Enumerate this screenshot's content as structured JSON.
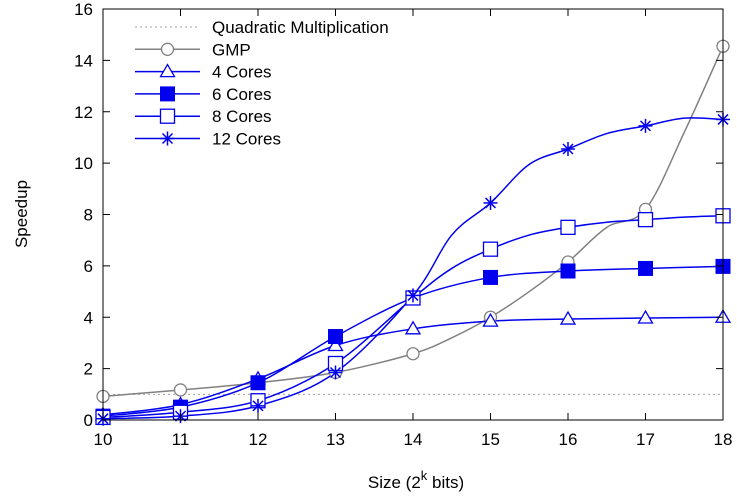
{
  "chart_data": {
    "type": "line",
    "title": "",
    "xlabel": "Size (2^k bits)",
    "xlabel_parts": {
      "before": "Size (2",
      "sup": "k",
      "after": " bits)"
    },
    "ylabel": "Speedup",
    "xlim": [
      10,
      18
    ],
    "ylim": [
      0,
      16
    ],
    "xticks": [
      "10",
      "11",
      "12",
      "13",
      "14",
      "15",
      "16",
      "17",
      "18"
    ],
    "yticks": [
      "0",
      "2",
      "4",
      "6",
      "8",
      "10",
      "12",
      "14",
      "16"
    ],
    "legend_position": "top-left",
    "grid": false,
    "series": [
      {
        "name": "Quadratic Multiplication",
        "color": "#a0a0a0",
        "style": "dotted",
        "marker": "none",
        "x": [
          10,
          18
        ],
        "y": [
          1,
          1
        ],
        "marker_x": []
      },
      {
        "name": "GMP",
        "color": "#808080",
        "style": "solid",
        "marker": "circle",
        "x": [
          10,
          11,
          12,
          13,
          14,
          14.5,
          15,
          15.5,
          16,
          16.5,
          17,
          17.5,
          18
        ],
        "y": [
          0.92,
          1.17,
          1.45,
          1.85,
          2.58,
          3.2,
          4.0,
          5.0,
          6.15,
          7.5,
          8.2,
          11.2,
          14.55
        ],
        "marker_x": [
          10,
          11,
          12,
          13,
          14,
          15,
          16,
          17,
          18
        ]
      },
      {
        "name": "4 Cores",
        "color": "#0000ee",
        "style": "solid",
        "marker": "triangle",
        "x": [
          10,
          11,
          12,
          13,
          14,
          15,
          16,
          17,
          18
        ],
        "y": [
          0.2,
          0.6,
          1.6,
          2.9,
          3.55,
          3.85,
          3.93,
          3.97,
          4.0
        ],
        "marker_x": [
          10,
          11,
          12,
          13,
          14,
          15,
          16,
          17,
          18
        ]
      },
      {
        "name": "6 Cores",
        "color": "#0000ee",
        "style": "solid",
        "marker": "filled-square",
        "x": [
          10,
          11,
          12,
          13,
          14,
          15,
          16,
          17,
          18
        ],
        "y": [
          0.15,
          0.5,
          1.45,
          3.25,
          4.75,
          5.55,
          5.8,
          5.9,
          5.98
        ],
        "marker_x": [
          10,
          11,
          12,
          13,
          14,
          15,
          16,
          17,
          18
        ]
      },
      {
        "name": "8 Cores",
        "color": "#0000ee",
        "style": "solid",
        "marker": "open-square",
        "x": [
          10,
          11,
          12,
          13,
          14,
          14.5,
          15,
          15.5,
          16,
          16.5,
          17,
          17.5,
          18
        ],
        "y": [
          0.1,
          0.3,
          0.75,
          2.2,
          4.75,
          5.9,
          6.65,
          7.2,
          7.5,
          7.7,
          7.8,
          7.9,
          7.95
        ],
        "marker_x": [
          10,
          11,
          12,
          13,
          14,
          15,
          16,
          17,
          18
        ]
      },
      {
        "name": "12 Cores",
        "color": "#0000ee",
        "style": "solid",
        "marker": "asterisk",
        "x": [
          10,
          11,
          12,
          13,
          14,
          14.5,
          15,
          15.5,
          16,
          16.5,
          17,
          17.5,
          18
        ],
        "y": [
          0.05,
          0.15,
          0.55,
          1.85,
          4.85,
          7.2,
          8.45,
          9.95,
          10.55,
          11.15,
          11.45,
          11.75,
          11.7
        ],
        "marker_x": [
          10,
          11,
          12,
          13,
          14,
          15,
          16,
          17,
          18
        ]
      }
    ]
  }
}
